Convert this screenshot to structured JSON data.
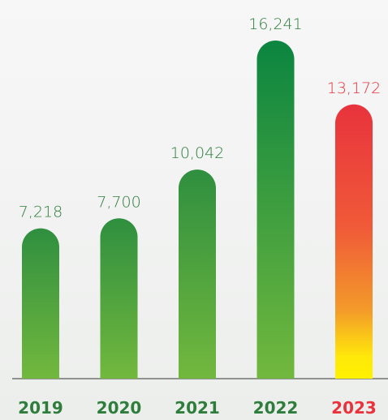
{
  "chart_data": {
    "type": "bar",
    "categories": [
      "2019",
      "2020",
      "2021",
      "2022",
      "2023"
    ],
    "values": [
      7218,
      7700,
      10042,
      16241,
      13172
    ],
    "value_labels": [
      "7,218",
      "7,700",
      "10,042",
      "16,241",
      "13,172"
    ],
    "colors": [
      "#2f8f3f",
      "#2f8f3f",
      "#2f8f3f",
      "#0b8540",
      "#e8333d"
    ],
    "label_colors": [
      "#2e7d3c",
      "#2e7d3c",
      "#2e7d3c",
      "#2e7d3c",
      "#e8333d"
    ]
  }
}
